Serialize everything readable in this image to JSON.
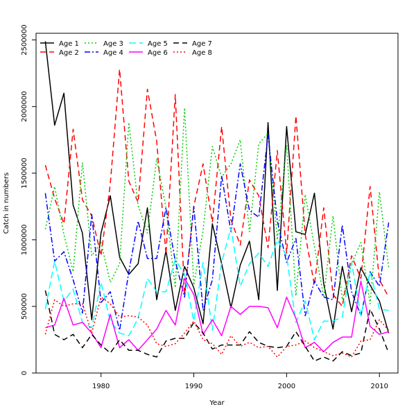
{
  "chart_data": {
    "type": "line",
    "xlabel": "Year",
    "ylabel": "Catch in numbers",
    "xlim": [
      1973,
      2012
    ],
    "ylim": [
      0,
      2550000
    ],
    "xticks": [
      1980,
      1990,
      2000,
      2010
    ],
    "yticks": [
      0,
      500000,
      1000000,
      1500000,
      2000000,
      2500000
    ],
    "legend_position": "top-left",
    "x": [
      1974,
      1975,
      1976,
      1977,
      1978,
      1979,
      1980,
      1981,
      1982,
      1983,
      1984,
      1985,
      1986,
      1987,
      1988,
      1989,
      1990,
      1991,
      1992,
      1993,
      1994,
      1995,
      1996,
      1997,
      1998,
      1999,
      2000,
      2001,
      2002,
      2003,
      2004,
      2005,
      2006,
      2007,
      2008,
      2009,
      2010,
      2011
    ],
    "series": [
      {
        "name": "Age 1",
        "color": "#000000",
        "dash": "solid",
        "values": [
          2490000,
          1860000,
          2100000,
          1260000,
          1050000,
          400000,
          1050000,
          1330000,
          870000,
          740000,
          820000,
          1240000,
          550000,
          920000,
          470000,
          800000,
          640000,
          370000,
          1120000,
          820000,
          490000,
          810000,
          990000,
          550000,
          1880000,
          620000,
          1850000,
          1060000,
          1040000,
          1350000,
          670000,
          330000,
          800000,
          460000,
          790000,
          660000,
          540000,
          300000
        ]
      },
      {
        "name": "Age 2",
        "color": "#ff0000",
        "dash": "8,5",
        "values": [
          1560000,
          1310000,
          1120000,
          1830000,
          1300000,
          1180000,
          880000,
          1420000,
          2280000,
          1440000,
          1280000,
          2130000,
          1740000,
          890000,
          2090000,
          590000,
          1250000,
          1570000,
          1130000,
          1850000,
          1150000,
          960000,
          1450000,
          1330000,
          940000,
          1670000,
          900000,
          1930000,
          1040000,
          660000,
          1240000,
          590000,
          500000,
          880000,
          710000,
          1400000,
          700000,
          570000
        ]
      },
      {
        "name": "Age 3",
        "color": "#00cc00",
        "dash": "2,3",
        "values": [
          1080000,
          1400000,
          1040000,
          760000,
          1580000,
          880000,
          980000,
          680000,
          820000,
          1880000,
          1260000,
          1050000,
          1610000,
          1240000,
          640000,
          1990000,
          660000,
          1070000,
          1700000,
          1470000,
          1570000,
          1750000,
          1060000,
          1720000,
          1800000,
          1000000,
          1710000,
          580000,
          1340000,
          950000,
          570000,
          1180000,
          550000,
          820000,
          980000,
          520000,
          1360000,
          790000
        ]
      },
      {
        "name": "Age 4",
        "color": "#0000ff",
        "dash": "8,3,2,3",
        "values": [
          1350000,
          840000,
          910000,
          700000,
          450000,
          1190000,
          530000,
          610000,
          320000,
          760000,
          1140000,
          860000,
          860000,
          1240000,
          840000,
          570000,
          1250000,
          470000,
          700000,
          1480000,
          1060000,
          1570000,
          1220000,
          1170000,
          1790000,
          1140000,
          830000,
          1010000,
          430000,
          690000,
          570000,
          550000,
          1110000,
          610000,
          430000,
          760000,
          650000,
          1130000
        ]
      },
      {
        "name": "Age 5",
        "color": "#00ffff",
        "dash": "10,5",
        "values": [
          480000,
          840000,
          540000,
          630000,
          380000,
          340000,
          680000,
          390000,
          300000,
          280000,
          410000,
          710000,
          610000,
          610000,
          850000,
          740000,
          390000,
          830000,
          320000,
          830000,
          1090000,
          650000,
          820000,
          900000,
          800000,
          1000000,
          880000,
          380000,
          540000,
          250000,
          390000,
          390000,
          420000,
          830000,
          430000,
          760000,
          480000,
          470000
        ]
      },
      {
        "name": "Age 6",
        "color": "#ff00ff",
        "dash": "solid",
        "values": [
          340000,
          360000,
          560000,
          360000,
          380000,
          300000,
          190000,
          440000,
          190000,
          250000,
          170000,
          250000,
          330000,
          470000,
          360000,
          710000,
          590000,
          290000,
          400000,
          280000,
          500000,
          440000,
          500000,
          500000,
          490000,
          340000,
          570000,
          410000,
          190000,
          230000,
          160000,
          230000,
          270000,
          270000,
          690000,
          350000,
          290000,
          310000
        ]
      },
      {
        "name": "Age 7",
        "color": "#000000",
        "dash": "8,5",
        "values": [
          620000,
          290000,
          250000,
          290000,
          190000,
          290000,
          210000,
          150000,
          250000,
          170000,
          170000,
          140000,
          120000,
          240000,
          260000,
          260000,
          380000,
          300000,
          180000,
          210000,
          210000,
          210000,
          310000,
          230000,
          200000,
          190000,
          200000,
          310000,
          200000,
          90000,
          120000,
          90000,
          160000,
          130000,
          150000,
          480000,
          330000,
          150000
        ]
      },
      {
        "name": "Age 8",
        "color": "#ff0000",
        "dash": "2,3",
        "values": [
          290000,
          550000,
          500000,
          520000,
          520000,
          300000,
          570000,
          520000,
          420000,
          430000,
          420000,
          360000,
          220000,
          200000,
          220000,
          300000,
          390000,
          250000,
          220000,
          140000,
          280000,
          200000,
          230000,
          190000,
          200000,
          120000,
          200000,
          210000,
          240000,
          190000,
          160000,
          130000,
          150000,
          120000,
          240000,
          250000,
          400000,
          320000
        ]
      }
    ]
  }
}
